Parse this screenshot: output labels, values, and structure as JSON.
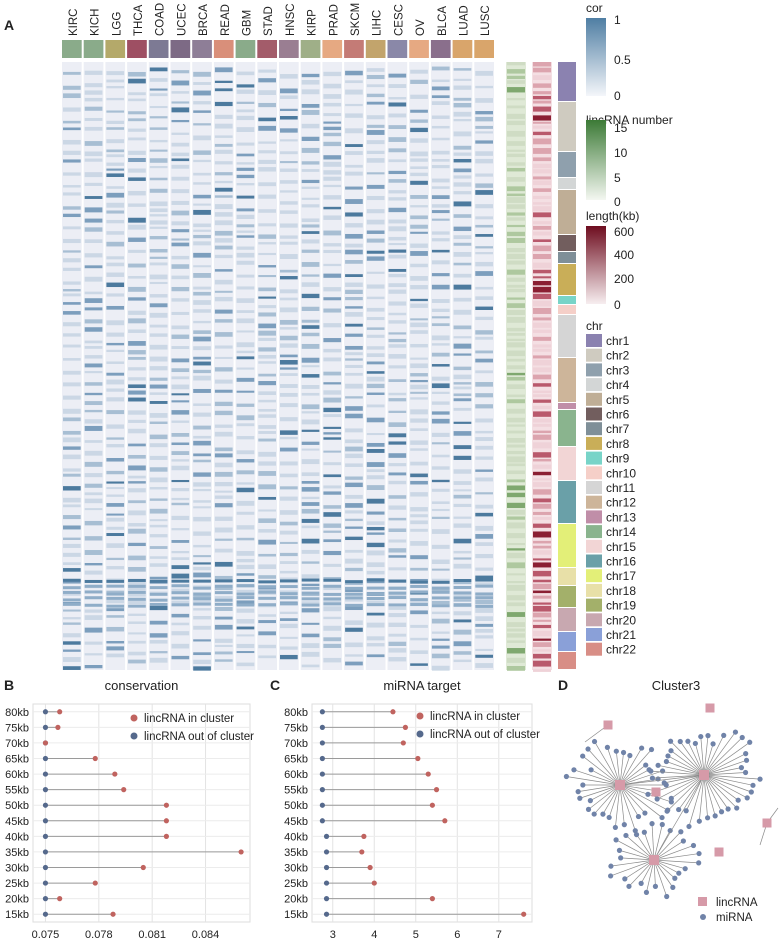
{
  "panels": {
    "A": "A",
    "B": "B",
    "C": "C",
    "D": "D"
  },
  "heatmap": {
    "cancers": [
      "KIRC",
      "KICH",
      "LGG",
      "THCA",
      "COAD",
      "UCEC",
      "BRCA",
      "READ",
      "GBM",
      "STAD",
      "HNSC",
      "KIRP",
      "PRAD",
      "SKCM",
      "LIHC",
      "CESC",
      "OV",
      "BLCA",
      "LUAD",
      "LUSC"
    ],
    "cancer_colors": [
      "#8aab8a",
      "#8aab8a",
      "#b4a96a",
      "#9e4f63",
      "#7d7a94",
      "#7d6a85",
      "#8e7e97",
      "#d98f7a",
      "#8aab8a",
      "#a35c6a",
      "#9a7e92",
      "#9faf88",
      "#e6a982",
      "#c47b76",
      "#c2a46c",
      "#8a88a8",
      "#e6a982",
      "#8a6f8c",
      "#d9a56b",
      "#d9a56b"
    ],
    "legend_cor": {
      "title": "cor",
      "ticks": [
        "1",
        "0.5",
        "0"
      ]
    },
    "legend_lincrna": {
      "title": "lincRNA number",
      "ticks": [
        "15",
        "10",
        "5",
        "0"
      ]
    },
    "legend_length": {
      "title": "length(kb)",
      "ticks": [
        "600",
        "400",
        "200",
        "0"
      ]
    },
    "legend_chr": {
      "title": "chr",
      "items": [
        "chr1",
        "chr2",
        "chr3",
        "chr4",
        "chr5",
        "chr6",
        "chr7",
        "chr8",
        "chr9",
        "chr10",
        "chr11",
        "chr12",
        "chr13",
        "chr14",
        "chr15",
        "chr16",
        "chr17",
        "chr18",
        "chr19",
        "chr20",
        "chr21",
        "chr22"
      ],
      "colors": [
        "#8b82b0",
        "#cfcbc0",
        "#8fa0ad",
        "#d3d6d6",
        "#bfae96",
        "#725e5e",
        "#7f8f98",
        "#c9ae58",
        "#78d4c8",
        "#f5cfc8",
        "#d5d5d5",
        "#cdb59a",
        "#c08ea8",
        "#8ab48e",
        "#f2d5d5",
        "#6aa0a8",
        "#e3ef78",
        "#e8e0a8",
        "#a3b06a",
        "#c8a8b0",
        "#8aa0d8",
        "#d88e86"
      ]
    }
  },
  "chart_data": [
    {
      "type": "scatter",
      "title": "conservation",
      "categories": [
        "15kb",
        "20kb",
        "25kb",
        "30kb",
        "35kb",
        "40kb",
        "45kb",
        "50kb",
        "55kb",
        "60kb",
        "65kb",
        "70kb",
        "75kb",
        "80kb"
      ],
      "xticks": [
        "0.075",
        "0.078",
        "0.081",
        "0.084"
      ],
      "xlim": [
        0.0743,
        0.0865
      ],
      "series": [
        {
          "name": "lincRNA in cluster",
          "color": "#c0635f",
          "values": [
            0.0788,
            0.0758,
            0.0778,
            0.0805,
            0.086,
            0.0818,
            0.0818,
            0.0818,
            0.0794,
            0.0789,
            0.0778,
            0.075,
            0.0757,
            0.0758
          ]
        },
        {
          "name": "lincRNA out of cluster",
          "color": "#55698c",
          "values": [
            0.075,
            0.075,
            0.075,
            0.075,
            0.075,
            0.075,
            0.075,
            0.075,
            0.075,
            0.075,
            0.075,
            0.075,
            0.075,
            0.075
          ]
        }
      ]
    },
    {
      "type": "scatter",
      "title": "miRNA target",
      "categories": [
        "15kb",
        "20kb",
        "25kb",
        "30kb",
        "35kb",
        "40kb",
        "45kb",
        "50kb",
        "55kb",
        "60kb",
        "65kb",
        "70kb",
        "75kb",
        "80kb"
      ],
      "xticks": [
        "3",
        "4",
        "5",
        "6",
        "7"
      ],
      "xlim": [
        2.5,
        7.8
      ],
      "series": [
        {
          "name": "lincRNA in cluster",
          "color": "#c0635f",
          "values": [
            7.6,
            5.4,
            4.0,
            3.9,
            3.7,
            3.75,
            5.7,
            5.4,
            5.5,
            5.3,
            5.05,
            4.7,
            4.75,
            4.45
          ]
        },
        {
          "name": "lincRNA out of cluster",
          "color": "#55698c",
          "values": [
            2.85,
            2.85,
            2.85,
            2.85,
            2.85,
            2.85,
            2.75,
            2.75,
            2.75,
            2.75,
            2.75,
            2.75,
            2.75,
            2.75
          ]
        }
      ]
    }
  ],
  "network": {
    "title": "Cluster3",
    "legend": [
      "lincRNA",
      "miRNA"
    ],
    "colors": {
      "lincRNA": "#d69aa8",
      "miRNA": "#7083a8"
    }
  }
}
